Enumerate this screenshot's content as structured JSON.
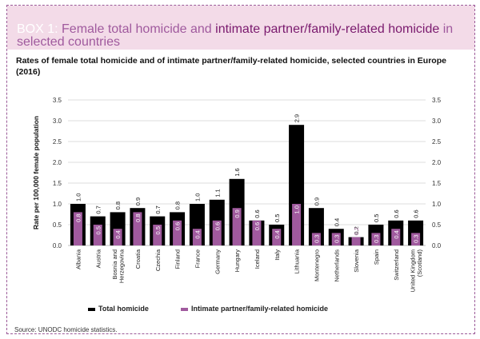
{
  "box": {
    "label": "BOX 1:",
    "title_part1": "Female total homicide and",
    "title_part2": "intimate partner/family-related homicide",
    "title_part3": "in",
    "title_line2": "selected countries"
  },
  "subtitle": "Rates of female total homicide and of intimate partner/family-related homicide, selected countries in Europe (2016)",
  "source": "Source: UNODC homicide statistics.",
  "colors": {
    "total": "#000000",
    "intimate": "#a05a9e",
    "intimate_small_label": "#d6a5d0",
    "box_label": "#ffffff",
    "banner": "#f3dbe8"
  },
  "chart_data": {
    "type": "bar",
    "title": "Rates of female total homicide and of intimate partner/family-related homicide, selected countries in Europe (2016)",
    "ylabel": "Rate per 100,000 female population",
    "xlabel": "",
    "ylim": [
      0,
      3.5
    ],
    "yticks": [
      "0.0",
      "0.5",
      "1.0",
      "1.5",
      "2.0",
      "2.5",
      "3.0",
      "3.5"
    ],
    "grid": true,
    "legend_position": "bottom",
    "categories": [
      "Albania",
      "Austria",
      "Bosnia and Herzegovina",
      "Croatia",
      "Czechia",
      "Finland",
      "France",
      "Germany",
      "Hungary",
      "Iceland",
      "Italy",
      "Lithuania",
      "Montenegro",
      "Netherlands",
      "Slovenia",
      "Spain",
      "Switzerland",
      "United Kingdom (Scotland)"
    ],
    "series": [
      {
        "name": "Total homicide",
        "values": [
          1.0,
          0.7,
          0.8,
          0.9,
          0.7,
          0.8,
          1.0,
          1.1,
          1.6,
          0.6,
          0.5,
          2.9,
          0.9,
          0.4,
          0.2,
          0.5,
          0.6,
          0.6
        ]
      },
      {
        "name": "Intimate partner/family-related homicide",
        "values": [
          0.8,
          0.5,
          0.4,
          0.8,
          0.5,
          0.6,
          0.4,
          0.6,
          0.9,
          0.6,
          0.4,
          1.0,
          0.3,
          0.3,
          0.2,
          0.3,
          0.4,
          0.3
        ]
      }
    ],
    "total_labels": [
      "1.0",
      "0.7",
      "0.8",
      "0.9",
      "0.7",
      "0.8",
      "1.0",
      "1.1",
      "1.6",
      "0.6",
      "0.5",
      "2.9",
      "0.9",
      "0.4",
      "0.2",
      "0.5",
      "0.6",
      "0.6"
    ],
    "intimate_labels": [
      "0.8",
      "0.5",
      "0.4",
      "0.8",
      "0.5",
      "0.6",
      "0.4",
      "0.6",
      "0.9",
      "0.6",
      "0.4",
      "1.0",
      "0.3",
      "0.3",
      "0.2",
      "0.3",
      "0.4",
      "0.3"
    ],
    "category_lines": [
      [
        "Albania"
      ],
      [
        "Austria"
      ],
      [
        "Bosnia and",
        "Herzegovina"
      ],
      [
        "Croatia"
      ],
      [
        "Czechia"
      ],
      [
        "Finland"
      ],
      [
        "France"
      ],
      [
        "Germany"
      ],
      [
        "Hungary"
      ],
      [
        "Iceland"
      ],
      [
        "Italy"
      ],
      [
        "Lithuania"
      ],
      [
        "Montenegro"
      ],
      [
        "Netherlands"
      ],
      [
        "Slovenia"
      ],
      [
        "Spain"
      ],
      [
        "Switzerland"
      ],
      [
        "United Kingdom",
        "(Scotland)"
      ]
    ]
  }
}
